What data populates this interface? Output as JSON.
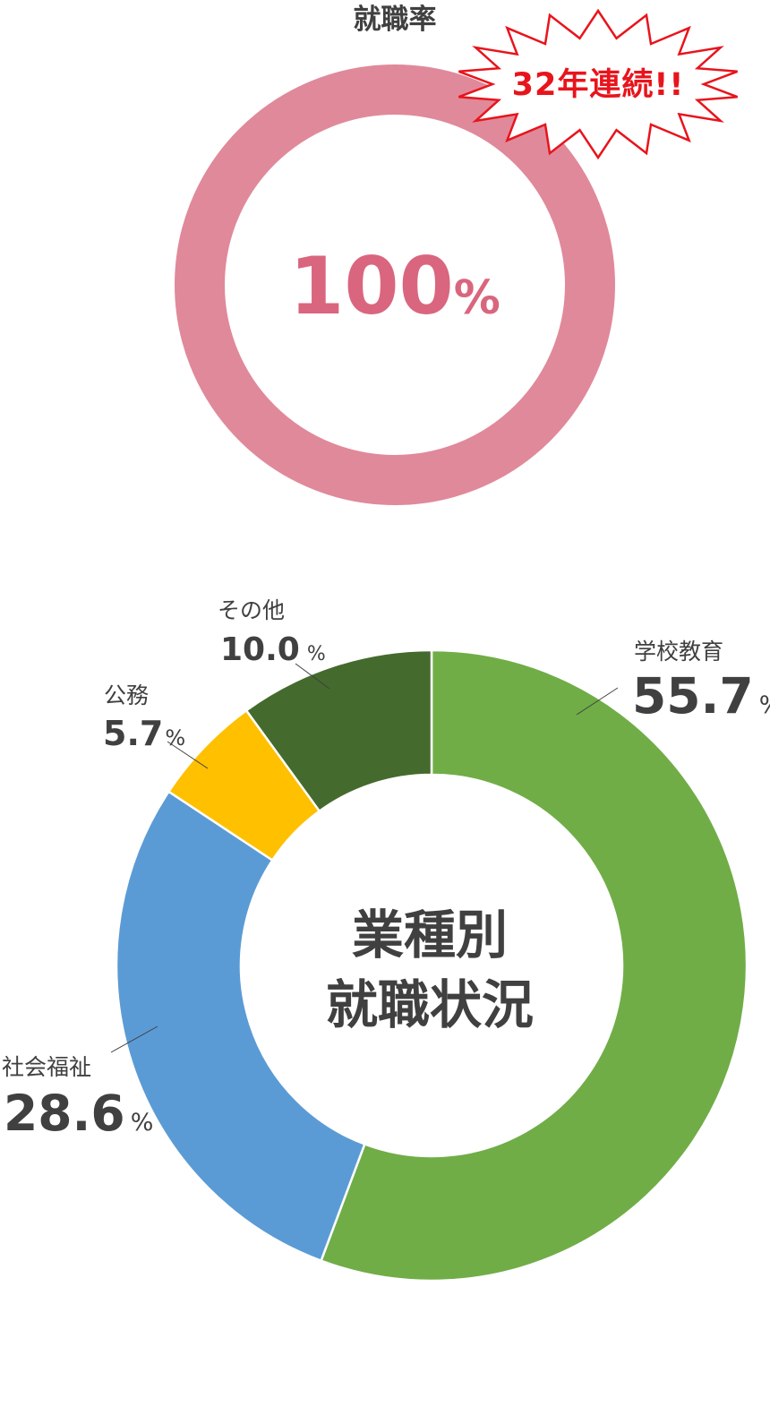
{
  "employment_rate": {
    "title": "就職率",
    "value_number": "100",
    "value_unit": "%",
    "burst_text": "32年連続!!",
    "ring_color": "#e0899a",
    "value_color": "#d9667e",
    "burst_text_color": "#e8141c"
  },
  "chart_data": [
    {
      "type": "pie",
      "title": "就職率",
      "categories": [
        "就職率"
      ],
      "values": [
        100
      ],
      "unit": "%"
    },
    {
      "type": "pie",
      "title": "業種別就職状況",
      "center_label": [
        "業種別",
        "就職状況"
      ],
      "categories": [
        "学校教育",
        "社会福祉",
        "公務",
        "その他"
      ],
      "values": [
        55.7,
        28.6,
        5.7,
        10.0
      ],
      "value_text": [
        "55.7",
        "28.6",
        "5.7",
        "10.0"
      ],
      "unit": "%",
      "colors": [
        "#70ad47",
        "#5b9bd5",
        "#ffc000",
        "#446b2d"
      ]
    }
  ],
  "text_color": "#404040"
}
